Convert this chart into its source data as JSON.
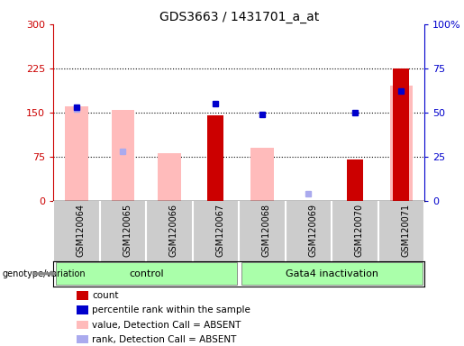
{
  "title": "GDS3663 / 1431701_a_at",
  "samples": [
    "GSM120064",
    "GSM120065",
    "GSM120066",
    "GSM120067",
    "GSM120068",
    "GSM120069",
    "GSM120070",
    "GSM120071"
  ],
  "red_bars": {
    "GSM120067": 145,
    "GSM120070": 70,
    "GSM120071": 225
  },
  "pink_bars": {
    "GSM120064": 160,
    "GSM120065": 155,
    "GSM120066": 80,
    "GSM120068": 90,
    "GSM120071": 195
  },
  "blue_squares": {
    "GSM120064": 53,
    "GSM120067": 55,
    "GSM120068": 49,
    "GSM120070": 50,
    "GSM120071": 62
  },
  "light_blue_squares": {
    "GSM120064": 52,
    "GSM120065": 28,
    "GSM120069": 4
  },
  "ylim_left": [
    0,
    300
  ],
  "ylim_right": [
    0,
    100
  ],
  "yticks_left": [
    0,
    75,
    150,
    225,
    300
  ],
  "yticks_right": [
    0,
    25,
    50,
    75,
    100
  ],
  "ytick_labels_right": [
    "0",
    "25",
    "50",
    "75",
    "100%"
  ],
  "left_axis_color": "#cc0000",
  "right_axis_color": "#0000cc",
  "pink_color": "#ffbbbb",
  "light_blue_color": "#aaaaee",
  "red_color": "#cc0000",
  "blue_color": "#0000cc",
  "gray_bg": "#cccccc",
  "green_bg": "#aaffaa",
  "groups": [
    {
      "label": "control",
      "indices": [
        0,
        1,
        2,
        3
      ]
    },
    {
      "label": "Gata4 inactivation",
      "indices": [
        4,
        5,
        6,
        7
      ]
    }
  ],
  "group_label": "genotype/variation",
  "legend_items": [
    {
      "label": "count",
      "color": "#cc0000"
    },
    {
      "label": "percentile rank within the sample",
      "color": "#0000cc"
    },
    {
      "label": "value, Detection Call = ABSENT",
      "color": "#ffbbbb"
    },
    {
      "label": "rank, Detection Call = ABSENT",
      "color": "#aaaaee"
    }
  ]
}
